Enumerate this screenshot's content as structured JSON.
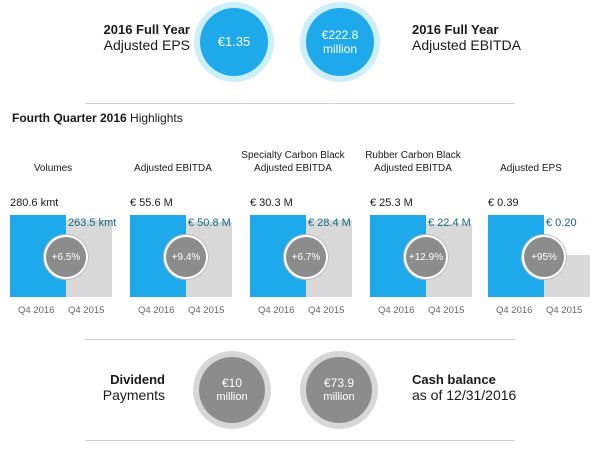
{
  "top": {
    "eps": {
      "label_line1": "2016 Full Year",
      "label_line2": "Adjusted EPS",
      "value_line1": "€1.35",
      "value_line2": ""
    },
    "ebitda": {
      "value_line1": "€222.8",
      "value_line2": "million",
      "label_line1": "2016 Full Year",
      "label_line2": "Adjusted EBITDA"
    }
  },
  "highlights": {
    "title_bold": "Fourth Quarter 2016",
    "title_rest": " Highlights"
  },
  "chart_data": [
    {
      "type": "bar",
      "title": "Volumes",
      "categories": [
        "Q4 2016",
        "Q4 2015"
      ],
      "values": [
        280.6,
        263.5
      ],
      "value_labels": [
        "280.6 kmt",
        "263.5 kmt"
      ],
      "change_label": "+6.5%"
    },
    {
      "type": "bar",
      "title": "Adjusted EBITDA",
      "categories": [
        "Q4 2016",
        "Q4 2015"
      ],
      "values": [
        55.6,
        50.8
      ],
      "value_labels": [
        "€ 55.6 M",
        "€ 50.8 M"
      ],
      "change_label": "+9.4%"
    },
    {
      "type": "bar",
      "title": "Specialty Carbon Black Adjusted EBITDA",
      "categories": [
        "Q4 2016",
        "Q4 2015"
      ],
      "values": [
        30.3,
        28.4
      ],
      "value_labels": [
        "€ 30.3 M",
        "€ 28.4 M"
      ],
      "change_label": "+6.7%"
    },
    {
      "type": "bar",
      "title": "Rubber Carbon Black Adjusted EBITDA",
      "categories": [
        "Q4 2016",
        "Q4 2015"
      ],
      "values": [
        25.3,
        22.4
      ],
      "value_labels": [
        "€ 25.3 M",
        "€ 22.4 M"
      ],
      "change_label": "+12.9%"
    },
    {
      "type": "bar",
      "title": "Adjusted EPS",
      "categories": [
        "Q4 2016",
        "Q4 2015"
      ],
      "values": [
        0.39,
        0.2
      ],
      "value_labels": [
        "€ 0.39",
        "€ 0.20"
      ],
      "change_label": "+95%"
    }
  ],
  "bottom": {
    "dividend": {
      "label_line1": "Dividend",
      "label_line2": "Payments",
      "value_line1": "€10",
      "value_line2": "million"
    },
    "cash": {
      "value_line1": "€73.9",
      "value_line2": "million",
      "label_line1": "Cash balance",
      "label_line2": "as of 12/31/2016"
    }
  },
  "colors": {
    "blue": "#1eaaea",
    "gray_bar": "#d9d9d9",
    "circle_gray": "#8c8c8c",
    "value_teal": "#0e6a85"
  }
}
